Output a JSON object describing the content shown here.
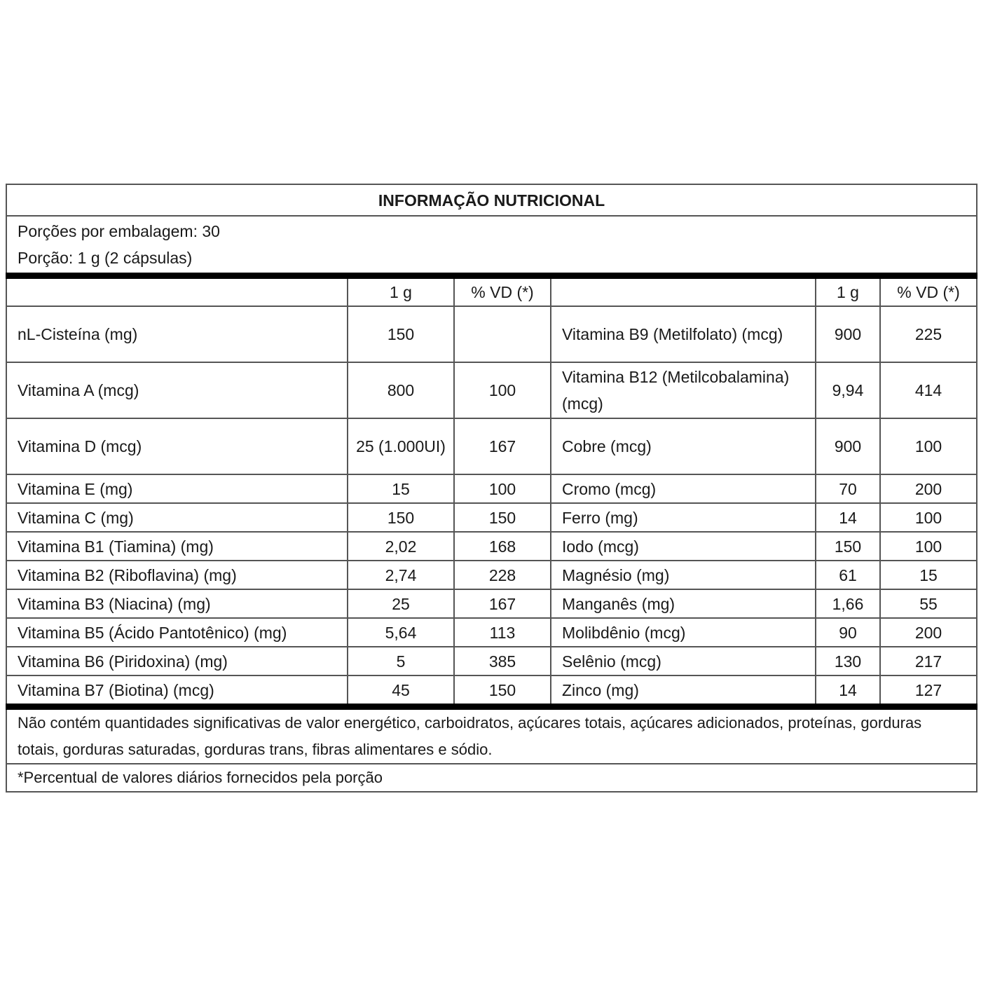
{
  "title": "INFORMAÇÃO NUTRICIONAL",
  "servings_per_package": "Porções por embalagem: 30",
  "serving_size": "Porção: 1 g (2 cápsulas)",
  "columns": {
    "amount": "1 g",
    "dv": "% VD (*)"
  },
  "rows": [
    {
      "left": {
        "name": "nL-Cisteína (mg)",
        "amount": "150",
        "dv": ""
      },
      "right": {
        "name": "Vitamina B9 (Metilfolato) (mcg)",
        "amount": "900",
        "dv": "225"
      },
      "tall": true
    },
    {
      "left": {
        "name": "Vitamina A (mcg)",
        "amount": "800",
        "dv": "100"
      },
      "right": {
        "name": "Vitamina B12 (Metilcobalamina) (mcg)",
        "amount": "9,94",
        "dv": "414"
      },
      "tall": true
    },
    {
      "left": {
        "name": "Vitamina D (mcg)",
        "amount": "25 (1.000UI)",
        "dv": "167"
      },
      "right": {
        "name": "Cobre (mcg)",
        "amount": "900",
        "dv": "100"
      },
      "tall": true
    },
    {
      "left": {
        "name": "Vitamina E (mg)",
        "amount": "15",
        "dv": "100"
      },
      "right": {
        "name": "Cromo (mcg)",
        "amount": "70",
        "dv": "200"
      }
    },
    {
      "left": {
        "name": "Vitamina C (mg)",
        "amount": "150",
        "dv": "150"
      },
      "right": {
        "name": "Ferro (mg)",
        "amount": "14",
        "dv": "100"
      }
    },
    {
      "left": {
        "name": "Vitamina B1 (Tiamina) (mg)",
        "amount": "2,02",
        "dv": "168"
      },
      "right": {
        "name": "Iodo (mcg)",
        "amount": "150",
        "dv": "100"
      }
    },
    {
      "left": {
        "name": "Vitamina B2 (Riboflavina) (mg)",
        "amount": "2,74",
        "dv": "228"
      },
      "right": {
        "name": "Magnésio (mg)",
        "amount": "61",
        "dv": "15"
      }
    },
    {
      "left": {
        "name": "Vitamina B3 (Niacina) (mg)",
        "amount": "25",
        "dv": "167"
      },
      "right": {
        "name": "Manganês (mg)",
        "amount": "1,66",
        "dv": "55"
      }
    },
    {
      "left": {
        "name": "Vitamina B5 (Ácido Pantotênico) (mg)",
        "amount": "5,64",
        "dv": "113"
      },
      "right": {
        "name": "Molibdênio (mcg)",
        "amount": "90",
        "dv": "200"
      }
    },
    {
      "left": {
        "name": "Vitamina B6 (Piridoxina) (mg)",
        "amount": "5",
        "dv": "385"
      },
      "right": {
        "name": "Selênio (mcg)",
        "amount": "130",
        "dv": "217"
      }
    },
    {
      "left": {
        "name": "Vitamina B7 (Biotina) (mcg)",
        "amount": "45",
        "dv": "150"
      },
      "right": {
        "name": "Zinco (mg)",
        "amount": "14",
        "dv": "127"
      }
    }
  ],
  "notes": "Não contém quantidades significativas de valor energético, carboidratos, açúcares totais, açúcares adicionados, proteínas, gorduras totais, gorduras saturadas, gorduras trans, fibras alimentares e sódio.",
  "footnote": "*Percentual de valores diários fornecidos pela porção"
}
